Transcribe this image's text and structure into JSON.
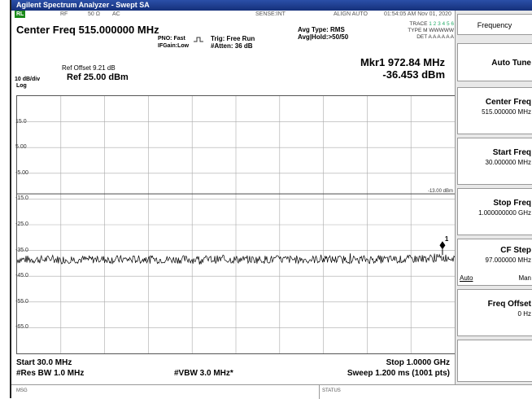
{
  "window": {
    "title": "Agilent Spectrum Analyzer - Swept SA"
  },
  "status_row": {
    "rl": "RL",
    "rf": "RF",
    "impedance": "50 Ω",
    "coupling": "AC",
    "sense": "SENSE:INT",
    "align": "ALIGN AUTO",
    "timestamp": "01:54:05 AM Nov 01, 2020"
  },
  "header": {
    "center_freq": "Center Freq 515.000000 MHz",
    "pno": "PNO: Fast",
    "ifgain": "IFGain:Low",
    "trig": "Trig: Free Run",
    "atten": "#Atten: 36 dB",
    "avg_type": "Avg Type: RMS",
    "avg_hold": "Avg|Hold:>50/50",
    "trace_label": "TRACE",
    "trace_nums": "1 2 3 4 5 6",
    "type_label": "TYPE",
    "type_val": "M WWWWW",
    "det_label": "DET",
    "det_val": "A A A A A A"
  },
  "marker": {
    "line1": "Mkr1 972.84 MHz",
    "line2": "-36.453 dBm",
    "flag": "1"
  },
  "scale": {
    "ref_offset": "Ref Offset 9.21 dB",
    "div": "10 dB/div",
    "ref": "Ref 25.00 dBm",
    "log": "Log"
  },
  "y_ticks": [
    "15.0",
    "5.00",
    "-5.00",
    "-15.0",
    "-25.0",
    "-35.0",
    "-45.0",
    "-55.0",
    "-65.0"
  ],
  "display_line_label": "-13.00 dBm",
  "footer": {
    "start": "Start 30.0 MHz",
    "stop": "Stop 1.0000 GHz",
    "rbw": "#Res BW 1.0 MHz",
    "vbw": "#VBW 3.0 MHz*",
    "sweep": "Sweep  1.200 ms (1001 pts)"
  },
  "msgbar": {
    "msg": "MSG",
    "status": "STATUS"
  },
  "softkeys": {
    "menu_title": "Frequency",
    "auto_tune": "Auto Tune",
    "center_freq": {
      "label": "Center Freq",
      "value": "515.000000 MHz"
    },
    "start_freq": {
      "label": "Start Freq",
      "value": "30.000000 MHz"
    },
    "stop_freq": {
      "label": "Stop Freq",
      "value": "1.000000000 GHz"
    },
    "cf_step": {
      "label": "CF Step",
      "value": "97.000000 MHz",
      "auto": "Auto",
      "man": "Man"
    },
    "freq_offset": {
      "label": "Freq Offset",
      "value": "0 Hz"
    }
  },
  "chart_data": {
    "type": "line",
    "xlabel": "",
    "ylabel": "",
    "x_range_mhz": [
      30,
      1000
    ],
    "ylim": [
      -75,
      25
    ],
    "y_unit": "dBm",
    "series": [
      {
        "name": "",
        "noise_floor_dbm": -38.5,
        "marker_x_mhz": 972.84,
        "marker_y_dbm": -36.453
      }
    ],
    "display_line_dbm": -13.0,
    "grid": true
  },
  "colors": {
    "titlebar": "#1a3a8c",
    "trace": "#000000",
    "grid": "#aaaaaa"
  }
}
